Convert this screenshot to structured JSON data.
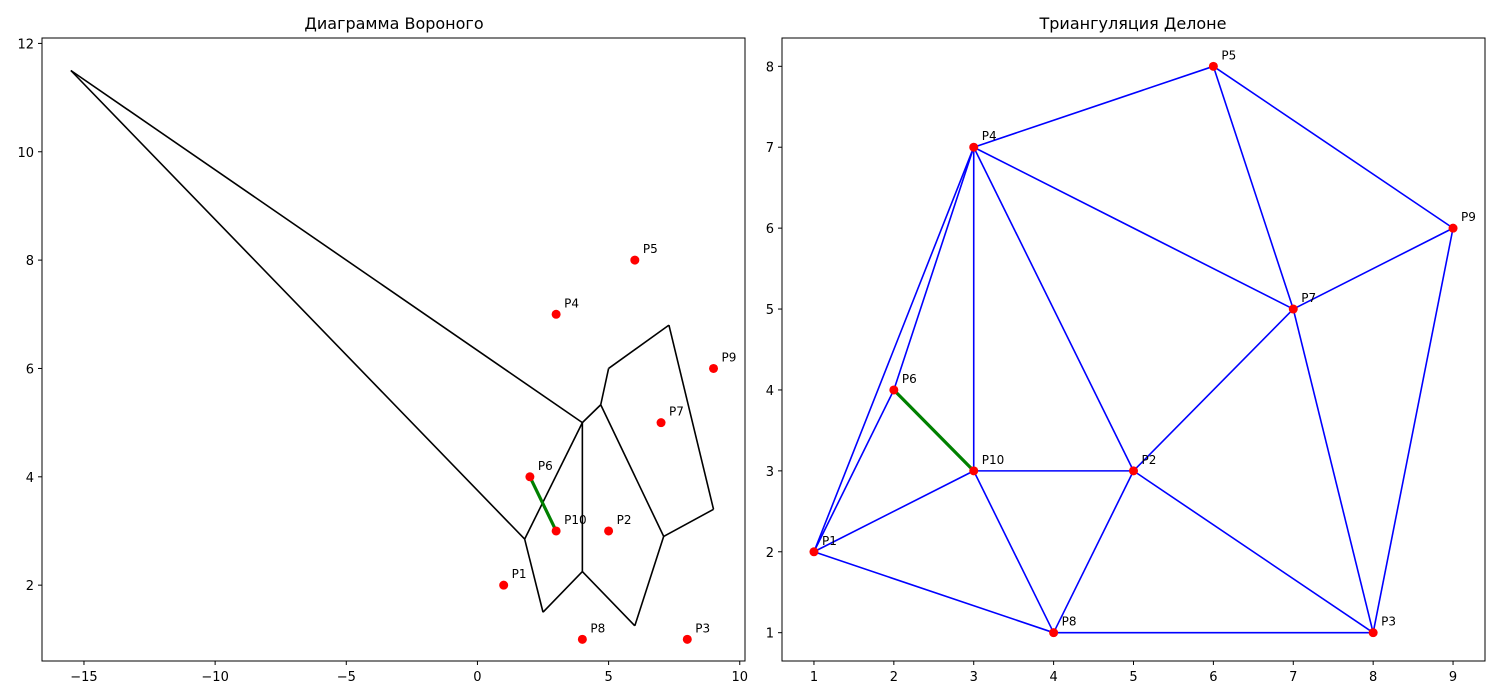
{
  "chart_data": [
    {
      "type": "line",
      "title": "Диаграмма Вороного",
      "xlim": [
        -16.6,
        10.2
      ],
      "ylim": [
        0.6,
        12.1
      ],
      "xticks": [
        -15,
        -10,
        -5,
        0,
        5,
        10
      ],
      "xtick_labels": [
        "−15",
        "−10",
        "−5",
        "0",
        "5",
        "10"
      ],
      "yticks": [
        2,
        4,
        6,
        8,
        10,
        12
      ],
      "ytick_labels": [
        "2",
        "4",
        "6",
        "8",
        "10",
        "12"
      ],
      "grid": false,
      "colors": {
        "edges": "#000000",
        "points": "#ff0000",
        "highlight": "#008000"
      },
      "edges": [
        [
          [
            -15.5,
            11.5
          ],
          [
            4.0,
            5.0
          ]
        ],
        [
          [
            -15.5,
            11.5
          ],
          [
            1.8,
            2.85
          ]
        ],
        [
          [
            1.8,
            2.85
          ],
          [
            4.0,
            5.0
          ]
        ],
        [
          [
            4.0,
            5.0
          ],
          [
            4.0,
            2.25
          ]
        ],
        [
          [
            4.0,
            5.0
          ],
          [
            4.7,
            5.33
          ]
        ],
        [
          [
            4.7,
            5.33
          ],
          [
            5.0,
            6.0
          ]
        ],
        [
          [
            5.0,
            6.0
          ],
          [
            7.3,
            6.8
          ]
        ],
        [
          [
            7.3,
            6.8
          ],
          [
            9.0,
            3.4
          ]
        ],
        [
          [
            9.0,
            3.4
          ],
          [
            7.1,
            2.9
          ]
        ],
        [
          [
            4.7,
            5.33
          ],
          [
            7.1,
            2.9
          ]
        ],
        [
          [
            7.1,
            2.9
          ],
          [
            6.0,
            1.25
          ]
        ],
        [
          [
            6.0,
            1.25
          ],
          [
            4.0,
            2.25
          ]
        ],
        [
          [
            4.0,
            2.25
          ],
          [
            2.5,
            1.5
          ]
        ],
        [
          [
            2.5,
            1.5
          ],
          [
            1.8,
            2.85
          ]
        ]
      ],
      "highlight_edge": [
        [
          2,
          4
        ],
        [
          3,
          3
        ]
      ],
      "points": [
        {
          "label": "P1",
          "x": 1,
          "y": 2
        },
        {
          "label": "P2",
          "x": 5,
          "y": 3
        },
        {
          "label": "P3",
          "x": 8,
          "y": 1
        },
        {
          "label": "P4",
          "x": 3,
          "y": 7
        },
        {
          "label": "P5",
          "x": 6,
          "y": 8
        },
        {
          "label": "P6",
          "x": 2,
          "y": 4
        },
        {
          "label": "P7",
          "x": 7,
          "y": 5
        },
        {
          "label": "P8",
          "x": 4,
          "y": 1
        },
        {
          "label": "P9",
          "x": 9,
          "y": 6
        },
        {
          "label": "P10",
          "x": 3,
          "y": 3
        }
      ]
    },
    {
      "type": "line",
      "title": "Триангуляция Делоне",
      "xlim": [
        0.6,
        9.4
      ],
      "ylim": [
        0.65,
        8.35
      ],
      "xticks": [
        1,
        2,
        3,
        4,
        5,
        6,
        7,
        8,
        9
      ],
      "xtick_labels": [
        "1",
        "2",
        "3",
        "4",
        "5",
        "6",
        "7",
        "8",
        "9"
      ],
      "yticks": [
        1,
        2,
        3,
        4,
        5,
        6,
        7,
        8
      ],
      "ytick_labels": [
        "1",
        "2",
        "3",
        "4",
        "5",
        "6",
        "7",
        "8"
      ],
      "grid": false,
      "colors": {
        "edges": "#0000ff",
        "points": "#ff0000",
        "highlight": "#008000"
      },
      "edges": [
        [
          [
            1,
            2
          ],
          [
            4,
            1
          ]
        ],
        [
          [
            4,
            1
          ],
          [
            8,
            1
          ]
        ],
        [
          [
            8,
            1
          ],
          [
            9,
            6
          ]
        ],
        [
          [
            9,
            6
          ],
          [
            6,
            8
          ]
        ],
        [
          [
            6,
            8
          ],
          [
            3,
            7
          ]
        ],
        [
          [
            3,
            7
          ],
          [
            1,
            2
          ]
        ],
        [
          [
            1,
            2
          ],
          [
            2,
            4
          ]
        ],
        [
          [
            2,
            4
          ],
          [
            3,
            7
          ]
        ],
        [
          [
            1,
            2
          ],
          [
            3,
            3
          ]
        ],
        [
          [
            3,
            3
          ],
          [
            3,
            7
          ]
        ],
        [
          [
            3,
            3
          ],
          [
            5,
            3
          ]
        ],
        [
          [
            3,
            3
          ],
          [
            4,
            1
          ]
        ],
        [
          [
            4,
            1
          ],
          [
            5,
            3
          ]
        ],
        [
          [
            5,
            3
          ],
          [
            8,
            1
          ]
        ],
        [
          [
            5,
            3
          ],
          [
            7,
            5
          ]
        ],
        [
          [
            5,
            3
          ],
          [
            3,
            7
          ]
        ],
        [
          [
            3,
            7
          ],
          [
            7,
            5
          ]
        ],
        [
          [
            6,
            8
          ],
          [
            7,
            5
          ]
        ],
        [
          [
            7,
            5
          ],
          [
            9,
            6
          ]
        ],
        [
          [
            7,
            5
          ],
          [
            8,
            1
          ]
        ],
        [
          [
            2,
            4
          ],
          [
            3,
            3
          ]
        ]
      ],
      "highlight_edge": [
        [
          2,
          4
        ],
        [
          3,
          3
        ]
      ],
      "points": [
        {
          "label": "P1",
          "x": 1,
          "y": 2
        },
        {
          "label": "P2",
          "x": 5,
          "y": 3
        },
        {
          "label": "P3",
          "x": 8,
          "y": 1
        },
        {
          "label": "P4",
          "x": 3,
          "y": 7
        },
        {
          "label": "P5",
          "x": 6,
          "y": 8
        },
        {
          "label": "P6",
          "x": 2,
          "y": 4
        },
        {
          "label": "P7",
          "x": 7,
          "y": 5
        },
        {
          "label": "P8",
          "x": 4,
          "y": 1
        },
        {
          "label": "P9",
          "x": 9,
          "y": 6
        },
        {
          "label": "P10",
          "x": 3,
          "y": 3
        }
      ]
    }
  ]
}
